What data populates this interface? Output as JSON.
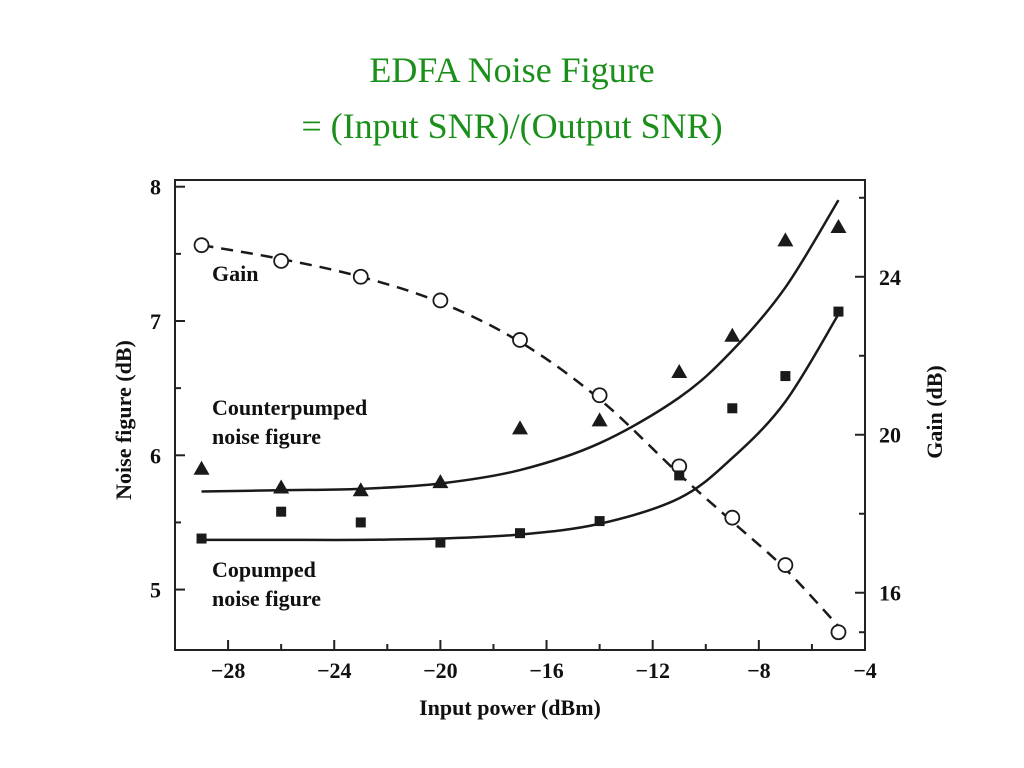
{
  "slide": {
    "title_line1": "EDFA Noise Figure",
    "title_line2": "= (Input SNR)/(Output SNR)",
    "title_color": "#1a8f1a"
  },
  "chart_data": {
    "type": "scatter",
    "xlabel": "Input power (dBm)",
    "ylabel": "Noise figure (dB)",
    "y2label": "Gain (dB)",
    "xlim": [
      -30,
      -4
    ],
    "ylim": [
      4.55,
      8.05
    ],
    "y2lim": [
      14.55,
      26.45
    ],
    "xticks": [
      -28,
      -24,
      -20,
      -16,
      -12,
      -8,
      -4
    ],
    "xtick_labels": [
      "−28",
      "−24",
      "−20",
      "−16",
      "−12",
      "−8",
      "−4"
    ],
    "yticks": [
      5,
      6,
      7,
      8
    ],
    "y2ticks": [
      16,
      20,
      24
    ],
    "annotations": [
      {
        "text": "Gain"
      },
      {
        "text": "Counterpumped",
        "text2": "noise figure"
      },
      {
        "text": "Copumped",
        "text2": "noise figure"
      }
    ],
    "series": [
      {
        "axis": "right",
        "marker": "circle-open",
        "line": "dashed",
        "x": [
          -29,
          -26,
          -23,
          -20,
          -17,
          -14,
          -11,
          -9,
          -7,
          -5
        ],
        "y": [
          24.8,
          24.4,
          24.0,
          23.4,
          22.4,
          21.0,
          19.2,
          17.9,
          16.7,
          15.0
        ],
        "fit_x": [
          -29,
          -26,
          -23,
          -20,
          -17,
          -14,
          -11,
          -9,
          -7,
          -5
        ],
        "fit_y": [
          24.8,
          24.45,
          24.0,
          23.35,
          22.35,
          20.9,
          19.0,
          17.8,
          16.6,
          15.15
        ]
      },
      {
        "axis": "left",
        "marker": "triangle-filled",
        "line": "solid",
        "x": [
          -29,
          -26,
          -23,
          -20,
          -17,
          -14,
          -11,
          -9,
          -7,
          -5
        ],
        "y": [
          5.9,
          5.76,
          5.74,
          5.8,
          6.2,
          6.26,
          6.62,
          6.89,
          7.6,
          7.7
        ],
        "fit_x": [
          -29,
          -26,
          -23,
          -20,
          -17,
          -14,
          -11,
          -9,
          -7,
          -5
        ],
        "fit_y": [
          5.73,
          5.74,
          5.75,
          5.79,
          5.89,
          6.09,
          6.43,
          6.78,
          7.25,
          7.9
        ]
      },
      {
        "axis": "left",
        "marker": "square-filled",
        "line": "solid",
        "x": [
          -29,
          -26,
          -23,
          -20,
          -17,
          -14,
          -11,
          -9,
          -7,
          -5
        ],
        "y": [
          5.38,
          5.58,
          5.5,
          5.35,
          5.42,
          5.51,
          5.85,
          6.35,
          6.59,
          7.07
        ],
        "fit_x": [
          -29,
          -26,
          -23,
          -20,
          -17,
          -14,
          -11,
          -9,
          -7,
          -5
        ],
        "fit_y": [
          5.37,
          5.37,
          5.37,
          5.38,
          5.41,
          5.49,
          5.68,
          5.98,
          6.4,
          7.05
        ]
      }
    ]
  }
}
